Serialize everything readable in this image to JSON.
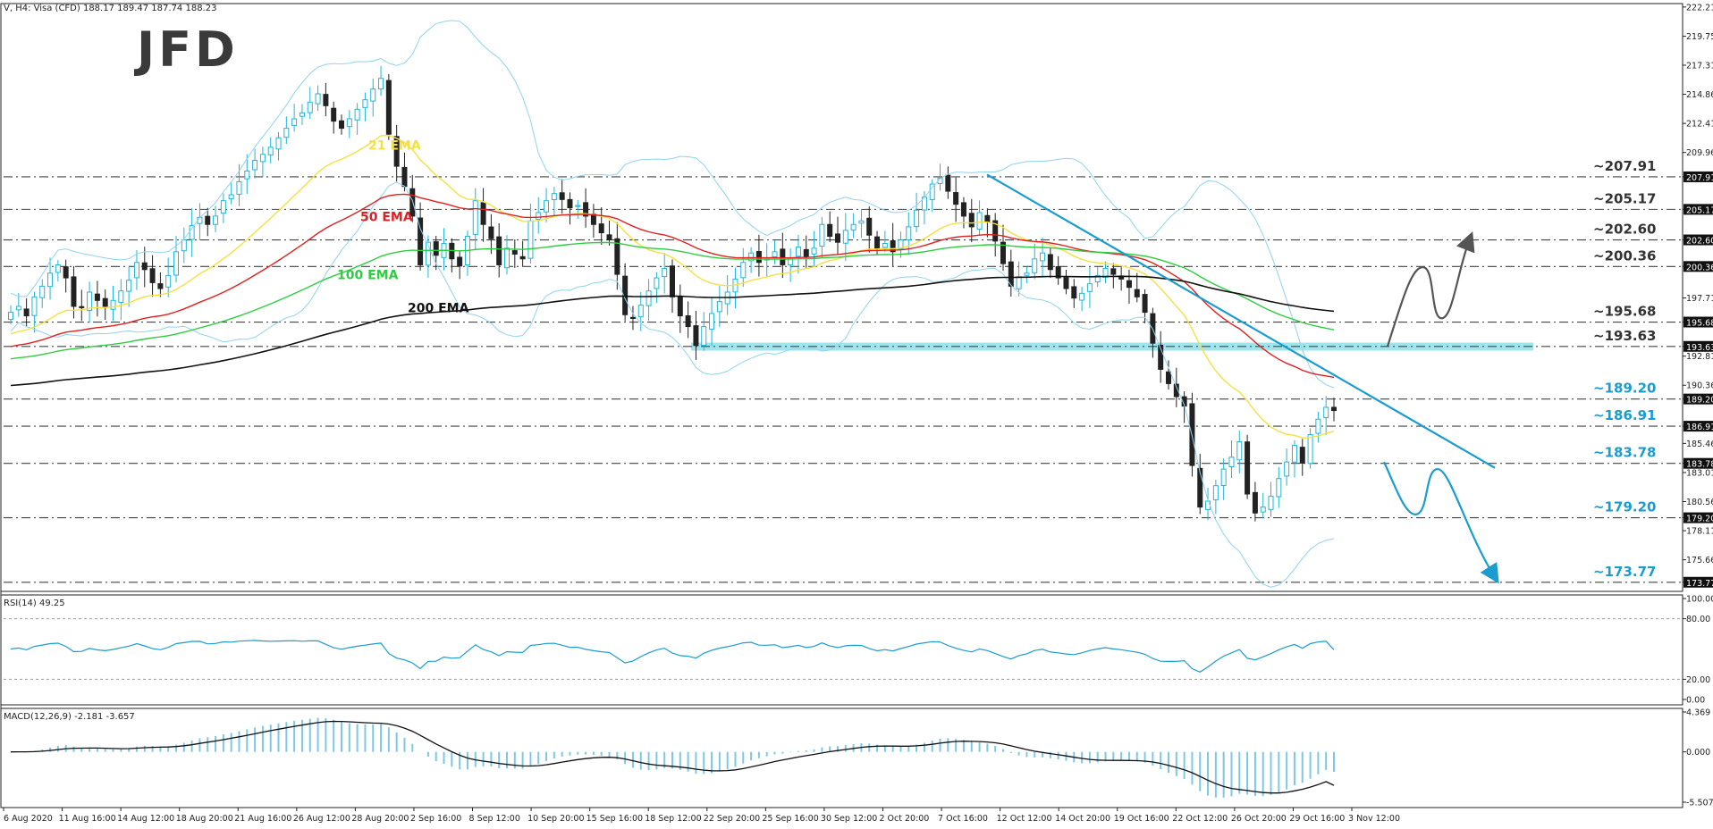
{
  "header": {
    "symbol_line": "V, H4:  Visa (CFD)  188.17 189.47 187.74 188.23",
    "logo": "JFD"
  },
  "colors": {
    "bull": "#1fb5d8",
    "bear": "#222222",
    "bands": "#8fd3ee",
    "ema21": "#f5e042",
    "ema50": "#e02020",
    "ema100": "#2ecc40",
    "ema200": "#111111",
    "accent": "#1a9cd0",
    "arrow_up": "#555555",
    "zone": "#8fe0ea"
  },
  "chart_data": [
    {
      "type": "candlestick",
      "title": "V, H4:  Visa (CFD)  188.17 189.47 187.74 188.23",
      "ylim": [
        173.0,
        222.5
      ],
      "y_ticks": [
        "222.21",
        "219.75",
        "217.31",
        "214.86",
        "212.41",
        "209.96",
        "207.91",
        "205.17",
        "202.60",
        "200.36",
        "197.71",
        "195.68",
        "193.63",
        "192.81",
        "190.36",
        "189.20",
        "186.91",
        "185.46",
        "183.78",
        "183.01",
        "180.56",
        "179.20",
        "178.11",
        "175.66",
        "173.77"
      ],
      "x_ticks": [
        "6 Aug 2020",
        "11 Aug 16:00",
        "14 Aug 12:00",
        "18 Aug 20:00",
        "21 Aug 16:00",
        "26 Aug 12:00",
        "28 Aug 20:00",
        "2 Sep 16:00",
        "8 Sep 12:00",
        "10 Sep 20:00",
        "15 Sep 16:00",
        "18 Sep 12:00",
        "22 Sep 20:00",
        "25 Sep 16:00",
        "30 Sep 12:00",
        "2 Oct 20:00",
        "7 Oct 16:00",
        "12 Oct 12:00",
        "14 Oct 20:00",
        "19 Oct 16:00",
        "22 Oct 12:00",
        "26 Oct 20:00",
        "29 Oct 16:00",
        "3 Nov 12:00"
      ],
      "levels": [
        {
          "value": 207.91,
          "label": "~207.91",
          "color": "#333333"
        },
        {
          "value": 205.17,
          "label": "~205.17",
          "color": "#333333"
        },
        {
          "value": 202.6,
          "label": "~202.60",
          "color": "#333333"
        },
        {
          "value": 200.36,
          "label": "~200.36",
          "color": "#333333"
        },
        {
          "value": 195.68,
          "label": "~195.68",
          "color": "#333333"
        },
        {
          "value": 193.63,
          "label": "~193.63",
          "color": "#333333"
        },
        {
          "value": 189.2,
          "label": "~189.20",
          "color": "#1a9cd0"
        },
        {
          "value": 186.91,
          "label": "~186.91",
          "color": "#1a9cd0"
        },
        {
          "value": 183.78,
          "label": "~183.78",
          "color": "#1a9cd0"
        },
        {
          "value": 179.2,
          "label": "~179.20",
          "color": "#1a9cd0"
        },
        {
          "value": 173.77,
          "label": "~173.77",
          "color": "#1a9cd0"
        }
      ],
      "ema_labels": [
        {
          "name": "21 EMA",
          "value": 210.2
        },
        {
          "name": "50 EMA",
          "value": 204.2
        },
        {
          "name": "100 EMA",
          "value": 199.3
        },
        {
          "name": "200 EMA",
          "value": 196.5
        }
      ],
      "closes": [
        196.5,
        197.0,
        196.2,
        197.8,
        198.7,
        199.8,
        200.5,
        199.4,
        197.0,
        196.9,
        198.2,
        197.5,
        197.0,
        197.5,
        198.3,
        199.2,
        200.7,
        200.1,
        199.0,
        198.5,
        199.6,
        201.6,
        202.6,
        203.8,
        204.5,
        203.9,
        204.6,
        205.9,
        206.4,
        207.5,
        208.4,
        209.3,
        209.8,
        210.4,
        211.2,
        212.0,
        212.8,
        213.3,
        214.2,
        214.9,
        213.9,
        212.6,
        212.0,
        212.8,
        213.6,
        214.4,
        215.3,
        216.2,
        211.5,
        208.8,
        207.1,
        204.6,
        200.5,
        202.4,
        201.3,
        202.3,
        201.0,
        200.4,
        202.9,
        205.9,
        203.9,
        202.7,
        200.5,
        201.9,
        201.4,
        201.0,
        204.2,
        204.9,
        205.9,
        206.5,
        206.0,
        205.3,
        205.5,
        204.6,
        203.9,
        203.2,
        202.6,
        199.7,
        196.3,
        196.0,
        197.1,
        198.3,
        199.4,
        200.2,
        197.8,
        196.2,
        195.3,
        193.7,
        195.3,
        196.4,
        197.4,
        198.2,
        199.3,
        200.7,
        201.5,
        200.7,
        201.0,
        201.6,
        200.5,
        201.1,
        202.0,
        201.2,
        201.9,
        203.9,
        202.9,
        202.4,
        203.4,
        203.9,
        204.2,
        203.0,
        201.9,
        202.3,
        201.6,
        202.6,
        203.7,
        205.1,
        206.2,
        207.3,
        207.8,
        206.7,
        205.6,
        204.6,
        203.7,
        204.9,
        204.1,
        202.5,
        200.6,
        198.7,
        199.5,
        199.8,
        201.0,
        201.5,
        200.1,
        199.4,
        198.5,
        197.7,
        198.1,
        198.9,
        199.6,
        200.2,
        199.7,
        199.3,
        198.6,
        197.8,
        196.5,
        193.9,
        191.7,
        190.5,
        189.4,
        188.6,
        183.6,
        180.1,
        180.6,
        181.9,
        183.3,
        184.3,
        185.6,
        181.2,
        179.6,
        180.1,
        181.0,
        182.5,
        183.9,
        185.3,
        183.8,
        186.2,
        187.5,
        188.5,
        188.23
      ],
      "rsi": {
        "label": "RSI(14) 49.25",
        "value": 49.25,
        "ticks": [
          "100.00",
          "80.00",
          "20.00",
          "0.00"
        ]
      },
      "macd": {
        "label": "MACD(12,26,9) -2.181 -3.657",
        "main": -2.181,
        "signal": -3.657,
        "ticks": [
          "4.369",
          "0.000",
          "-5.507"
        ]
      }
    }
  ]
}
